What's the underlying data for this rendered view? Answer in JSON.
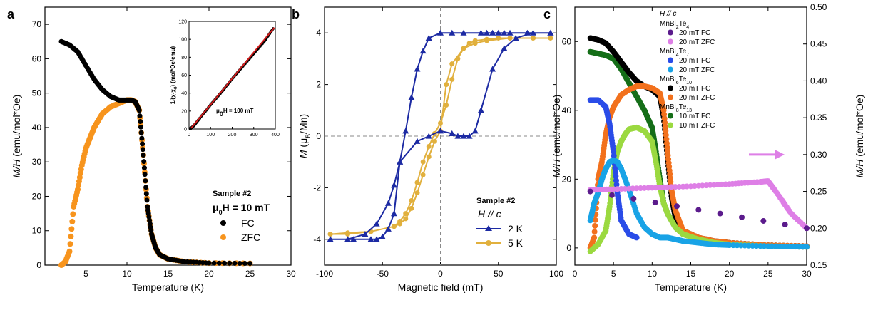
{
  "chart_data": [
    {
      "panel": "a",
      "type": "scatter",
      "xlabel_main": "Temperature (K)",
      "ylabel_italic": "M/H",
      "ylabel_rest": " (emu/mol*Oe)",
      "xlim": [
        0,
        30
      ],
      "ylim": [
        0,
        75
      ],
      "xticks": [
        "5",
        "10",
        "15",
        "20",
        "25",
        "30"
      ],
      "yticks": [
        "0",
        "10",
        "20",
        "30",
        "40",
        "50",
        "60",
        "70"
      ],
      "legend_title": "Sample #2",
      "legend_field": "μ0H = 10 mT",
      "legend_position": "lower-right",
      "series": [
        {
          "name": "FC",
          "color": "#000000",
          "x": [
            2,
            3,
            4,
            5,
            6,
            7,
            8,
            8.5,
            9,
            9.5,
            10,
            10.5,
            11,
            11.5,
            12,
            12.5,
            13,
            13.5,
            14,
            15,
            17,
            20,
            25
          ],
          "y": [
            65,
            64,
            62,
            58,
            54,
            51,
            49,
            48.5,
            48,
            48,
            48,
            48,
            47.5,
            45,
            32,
            17,
            9,
            5,
            3,
            1.8,
            1,
            0.6,
            0.5
          ]
        },
        {
          "name": "ZFC",
          "color": "#f7941d",
          "x": [
            2,
            2.5,
            3,
            3.5,
            4,
            4.5,
            5,
            5.5,
            6,
            6.5,
            7,
            8,
            9,
            10,
            10.5,
            11,
            11.5,
            12,
            12.5,
            13,
            13.5,
            14,
            15,
            17,
            20,
            25
          ],
          "y": [
            0,
            1,
            4,
            17,
            22,
            29,
            34,
            37,
            40,
            42,
            44,
            46,
            47,
            48,
            48,
            47.5,
            45,
            32,
            17,
            9,
            5,
            3,
            1.8,
            1,
            0.6,
            0.5
          ]
        }
      ],
      "inset": {
        "xlabel": "",
        "ylabel": "1/(χ-χ0) (mol*Oe/emu)",
        "xlim": [
          0,
          400
        ],
        "ylim": [
          0,
          120
        ],
        "xticks": [
          "0",
          "100",
          "200",
          "300",
          "400"
        ],
        "yticks": [
          "0",
          "20",
          "40",
          "60",
          "80",
          "100",
          "120"
        ],
        "annotation": "μ0H = 100 mT",
        "data_x": [
          5,
          10,
          15,
          25,
          50,
          100,
          150,
          200,
          250,
          300,
          350,
          390
        ],
        "data_y": [
          0.5,
          1,
          2,
          4.5,
          12,
          27,
          41,
          56,
          70,
          84,
          98,
          112
        ],
        "fit_x": [
          10,
          395
        ],
        "fit_y": [
          1,
          113
        ],
        "data_color": "#000000",
        "fit_color": "#d41c1c"
      }
    },
    {
      "panel": "b",
      "type": "line",
      "xlabel": "Magnetic field (mT)",
      "ylabel_italic": "M",
      "ylabel_rest": " (μB/Mn)",
      "xlim": [
        -100,
        100
      ],
      "ylim": [
        -5,
        5
      ],
      "xticks": [
        "-100",
        "-50",
        "0",
        "50",
        "100"
      ],
      "yticks": [
        "-4",
        "-2",
        "0",
        "2",
        "4"
      ],
      "legend_title": "Sample #2",
      "legend_field": "H // c",
      "legend_position": "lower-right",
      "series": [
        {
          "name": "2 K",
          "color": "#1c2aa3",
          "marker": "triangle",
          "x": [
            -95,
            -80,
            -65,
            -55,
            -45,
            -40,
            -35,
            -30,
            -25,
            -20,
            -15,
            -10,
            0,
            10,
            20,
            35,
            40,
            45,
            50,
            55,
            60,
            75,
            95,
            95,
            80,
            65,
            55,
            45,
            35,
            30,
            25,
            20,
            15,
            10,
            0,
            -10,
            -20,
            -35,
            -40,
            -45,
            -50,
            -55,
            -60,
            -75,
            -95
          ],
          "y": [
            -4,
            -4,
            -3.8,
            -3.4,
            -2.6,
            -1.9,
            -1,
            0.2,
            1.5,
            2.6,
            3.3,
            3.8,
            4,
            4,
            4,
            4,
            4,
            4,
            4,
            4,
            4,
            4,
            4,
            4,
            4,
            3.8,
            3.4,
            2.6,
            1,
            0.2,
            0,
            0,
            0,
            0.1,
            0.2,
            0,
            -0.2,
            -1,
            -3,
            -3.6,
            -3.9,
            -4,
            -4,
            -4,
            -4
          ]
        },
        {
          "name": "5 K",
          "color": "#e1b03d",
          "marker": "circle",
          "x": [
            -95,
            -80,
            -60,
            -40,
            -35,
            -30,
            -25,
            -20,
            -15,
            -10,
            -5,
            0,
            5,
            10,
            15,
            20,
            25,
            30,
            40,
            50,
            60,
            80,
            95,
            80,
            60,
            40,
            30,
            20,
            10,
            5,
            0,
            -5,
            -10,
            -15,
            -20,
            -25,
            -30,
            -35,
            -40,
            -60,
            -80,
            -95
          ],
          "y": [
            -3.8,
            -3.8,
            -3.7,
            -3.5,
            -3.3,
            -3,
            -2.5,
            -1.8,
            -1,
            -0.4,
            0.1,
            0.5,
            1.2,
            2.2,
            3,
            3.4,
            3.6,
            3.7,
            3.75,
            3.8,
            3.8,
            3.8,
            3.8,
            3.8,
            3.8,
            3.7,
            3.6,
            3.4,
            2.8,
            2,
            0.2,
            -0.2,
            -0.8,
            -1.5,
            -2.2,
            -2.8,
            -3.2,
            -3.4,
            -3.5,
            -3.7,
            -3.75,
            -3.8
          ]
        }
      ]
    },
    {
      "panel": "c",
      "type": "scatter",
      "xlabel": "Temperature (K)",
      "ylabel_left_italic": "M/H",
      "ylabel_left_rest": " (emu/mol*Oe)",
      "ylabel_right_italic": "M/H",
      "ylabel_right_rest": " (emu/mol*Oe)",
      "xlim": [
        0,
        30
      ],
      "ylim_left": [
        -5,
        70
      ],
      "ylim_right": [
        0.15,
        0.5
      ],
      "xticks": [
        "0",
        "5",
        "10",
        "15",
        "20",
        "25",
        "30"
      ],
      "yticks_left": [
        "0",
        "20",
        "40",
        "60"
      ],
      "yticks_right": [
        "0.15",
        "0.20",
        "0.25",
        "0.30",
        "0.35",
        "0.40",
        "0.45",
        "0.50"
      ],
      "legend_position": "upper-center",
      "legend_header": "H // c",
      "series": [
        {
          "group": "MnBi2Te4",
          "name": "20 mT FC",
          "color": "#5b1b8c",
          "axis": "right",
          "x": [
            2,
            30
          ],
          "y": [
            0.25,
            0.2
          ]
        },
        {
          "group": "MnBi2Te4",
          "name": "20 mT ZFC",
          "color": "#de7fe6",
          "axis": "right",
          "x": [
            2,
            5,
            10,
            15,
            20,
            24,
            25,
            26,
            28,
            30
          ],
          "y": [
            0.252,
            0.253,
            0.255,
            0.257,
            0.26,
            0.263,
            0.264,
            0.25,
            0.22,
            0.2
          ]
        },
        {
          "group": "MnBi4Te7",
          "name": "20 mT FC",
          "color": "#2a4ce8",
          "axis": "left",
          "x": [
            2,
            3,
            4,
            4.5,
            5,
            5.5,
            6,
            7,
            8
          ],
          "y": [
            43,
            43,
            41,
            36,
            28,
            16,
            8,
            4,
            3
          ]
        },
        {
          "group": "MnBi4Te7",
          "name": "20 mT ZFC",
          "color": "#19a3e6",
          "axis": "left",
          "x": [
            2,
            2.5,
            3,
            3.5,
            4,
            4.5,
            5,
            5.5,
            6,
            7,
            8,
            9,
            10,
            11,
            12,
            13,
            14,
            16,
            18,
            20,
            25,
            30
          ],
          "y": [
            8,
            13,
            16,
            20,
            23,
            25,
            25.5,
            25,
            23,
            17,
            10,
            6,
            4,
            3,
            3,
            2.5,
            2,
            1.5,
            1,
            0.8,
            0.5,
            0.3
          ]
        },
        {
          "group": "MnBi6Te10",
          "name": "20 mT FC",
          "color": "#000000",
          "axis": "left",
          "x": [
            2,
            3,
            4,
            5,
            6,
            7,
            8,
            9,
            10,
            11,
            11.5,
            12,
            12.5,
            13,
            14,
            16,
            18,
            20,
            25,
            30
          ],
          "y": [
            61,
            60.5,
            59.5,
            57,
            54,
            51,
            48.5,
            47,
            46,
            44,
            38,
            26,
            15,
            9,
            5,
            3,
            2,
            1.5,
            0.8,
            0.5
          ]
        },
        {
          "group": "MnBi6Te10",
          "name": "20 mT ZFC",
          "color": "#f2711d",
          "axis": "left",
          "x": [
            2,
            2.5,
            3,
            3.5,
            4,
            4.5,
            5,
            6,
            7,
            8,
            9,
            10,
            11,
            11.5,
            12,
            12.5,
            13,
            14,
            16,
            18,
            20,
            25,
            30
          ],
          "y": [
            0,
            3,
            20,
            25,
            33,
            38,
            41,
            44.5,
            46,
            47,
            47,
            46.5,
            45,
            40,
            28,
            17,
            11,
            5,
            3,
            2,
            1.5,
            0.8,
            0.5
          ]
        },
        {
          "group": "MnBi8Te13",
          "name": "10 mT FC",
          "color": "#156e18",
          "axis": "left",
          "x": [
            2,
            3,
            4,
            5,
            6,
            7,
            8,
            9,
            10,
            10.5,
            11,
            11.5,
            12,
            13,
            14,
            16,
            18,
            20,
            25,
            30
          ],
          "y": [
            57,
            56.5,
            56,
            55,
            52,
            48,
            44,
            40,
            35,
            28,
            20,
            13,
            10,
            6,
            4,
            2.5,
            1.5,
            1,
            0.5,
            0.3
          ]
        },
        {
          "group": "MnBi8Te13",
          "name": "10 mT ZFC",
          "color": "#9bd940",
          "axis": "left",
          "x": [
            2,
            3,
            4,
            4.5,
            5,
            5.5,
            6,
            6.5,
            7,
            8,
            9,
            10,
            10.5,
            11,
            11.5,
            12,
            13,
            14,
            16,
            18,
            20,
            25,
            30
          ],
          "y": [
            -1,
            1,
            5,
            12,
            22,
            28,
            31,
            33,
            34.5,
            35,
            34,
            31,
            25,
            18,
            13,
            10,
            6,
            4,
            2.5,
            1.5,
            1,
            0.5,
            0.3
          ]
        }
      ],
      "legend_groups": [
        {
          "label": "MnBi2Te4",
          "items": [
            {
              "text": "20 mT FC",
              "color": "#5b1b8c"
            },
            {
              "text": "20 mT ZFC",
              "color": "#de7fe6"
            }
          ]
        },
        {
          "label": "MnBi4Te7",
          "items": [
            {
              "text": "20 mT FC",
              "color": "#2a4ce8"
            },
            {
              "text": "20 mT ZFC",
              "color": "#19a3e6"
            }
          ]
        },
        {
          "label": "MnBi6Te10",
          "items": [
            {
              "text": "20 mT FC",
              "color": "#000000"
            },
            {
              "text": "20 mT ZFC",
              "color": "#f2711d"
            }
          ]
        },
        {
          "label": "MnBi8Te13",
          "items": [
            {
              "text": "10 mT FC",
              "color": "#156e18"
            },
            {
              "text": "10 mT ZFC",
              "color": "#9bd940"
            }
          ]
        }
      ],
      "arrow_color": "#de7fe6"
    }
  ],
  "panel_labels": [
    "a",
    "b",
    "c"
  ]
}
